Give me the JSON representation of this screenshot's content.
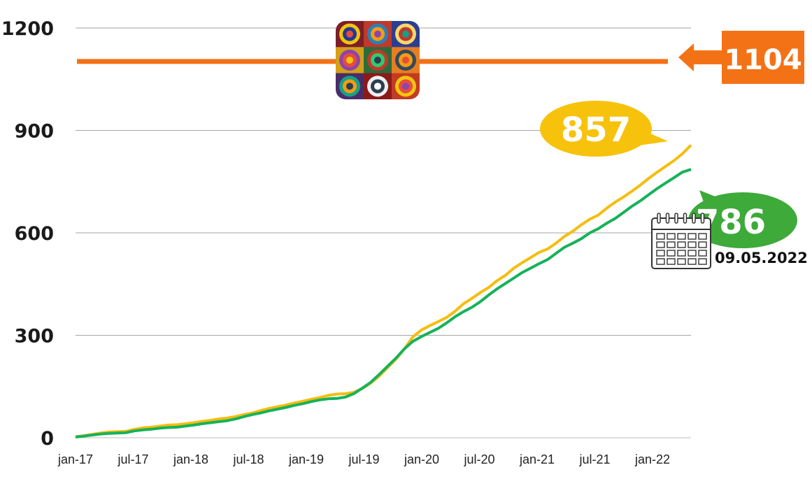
{
  "colors": {
    "target": "#f47216",
    "series_yellow": "#f5bd0f",
    "series_green": "#16b25a",
    "bubble_yellow": "#f7c20c",
    "bubble_green": "#3daa3a",
    "grid": "#a6a6a6"
  },
  "icons": {
    "logo": "kandinsky-squares-logo",
    "calendar": "calendar-icon"
  },
  "chart_data": {
    "type": "line",
    "yticks": [
      "0",
      "300",
      "600",
      "900",
      "1200"
    ],
    "ylim": [
      0,
      1200
    ],
    "grid": true,
    "x_tick_labels": [
      "jan-17",
      "jul-17",
      "jan-18",
      "jul-18",
      "jan-19",
      "jul-19",
      "jan-20",
      "jul-20",
      "jan-21",
      "jul-21",
      "jan-22"
    ],
    "x_start": "2017-01",
    "x_end": "2022-05",
    "target": {
      "value": 1104,
      "label": "1104"
    },
    "series": [
      {
        "color": "#f5bd0f",
        "final_label": "857",
        "values": [
          3,
          6,
          10,
          14,
          17,
          18,
          19,
          25,
          29,
          31,
          34,
          37,
          38,
          41,
          44,
          48,
          51,
          55,
          58,
          62,
          68,
          73,
          80,
          86,
          91,
          96,
          102,
          107,
          113,
          118,
          124,
          128,
          129,
          133,
          144,
          160,
          180,
          205,
          230,
          260,
          295,
          315,
          328,
          340,
          352,
          370,
          392,
          408,
          425,
          440,
          460,
          476,
          497,
          513,
          528,
          543,
          553,
          570,
          590,
          605,
          624,
          640,
          652,
          672,
          690,
          705,
          722,
          740,
          760,
          778,
          795,
          812,
          832,
          857
        ]
      },
      {
        "color": "#16b25a",
        "final_label": "786",
        "values": [
          2,
          5,
          8,
          11,
          13,
          14,
          15,
          20,
          23,
          25,
          28,
          30,
          31,
          34,
          37,
          41,
          44,
          47,
          50,
          55,
          62,
          68,
          73,
          79,
          84,
          89,
          95,
          100,
          106,
          111,
          114,
          115,
          119,
          129,
          145,
          162,
          185,
          209,
          233,
          260,
          282,
          296,
          308,
          320,
          336,
          354,
          369,
          382,
          398,
          418,
          436,
          452,
          468,
          484,
          497,
          510,
          522,
          540,
          558,
          570,
          583,
          600,
          612,
          628,
          642,
          660,
          678,
          694,
          712,
          730,
          746,
          762,
          778,
          786
        ]
      }
    ],
    "date_label": "09.05.2022"
  }
}
